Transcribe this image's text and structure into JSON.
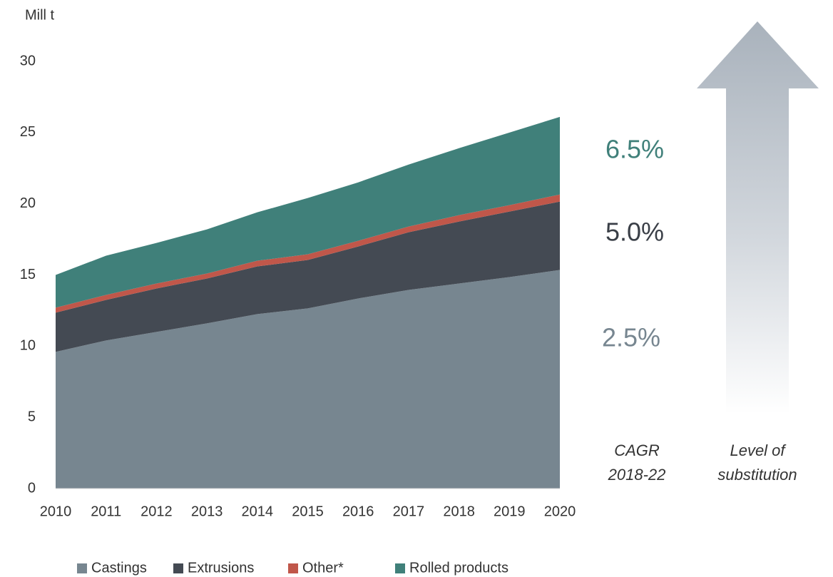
{
  "chart_data": {
    "type": "stacked_area",
    "y_axis_label": "Mill t",
    "categories": [
      "2010",
      "2011",
      "2012",
      "2013",
      "2014",
      "2015",
      "2016",
      "2017",
      "2018",
      "2019",
      "2020"
    ],
    "series": [
      {
        "name": "Castings",
        "color": "#778690",
        "values": [
          9.6,
          10.4,
          11.0,
          11.6,
          12.25,
          12.65,
          13.35,
          13.95,
          14.4,
          14.85,
          15.35
        ]
      },
      {
        "name": "Extrusions",
        "color": "#444a53",
        "values": [
          2.75,
          2.85,
          3.05,
          3.15,
          3.35,
          3.4,
          3.65,
          4.05,
          4.35,
          4.6,
          4.8
        ]
      },
      {
        "name": "Other*",
        "color": "#c0574a",
        "values": [
          0.35,
          0.35,
          0.35,
          0.35,
          0.4,
          0.4,
          0.4,
          0.4,
          0.45,
          0.45,
          0.5
        ]
      },
      {
        "name": "Rolled products",
        "color": "#40807a",
        "values": [
          2.3,
          2.75,
          2.85,
          3.1,
          3.4,
          3.95,
          4.1,
          4.35,
          4.7,
          5.1,
          5.45
        ]
      }
    ],
    "ylim": [
      0,
      30
    ],
    "yticks": [
      0,
      5,
      10,
      15,
      20,
      25,
      30
    ],
    "legend": "bottom",
    "annotations": [
      {
        "text": "6.5%",
        "color": "#40807a"
      },
      {
        "text": "5.0%",
        "color": "#3a3f47"
      },
      {
        "text": "2.5%",
        "color": "#778690"
      }
    ],
    "cagr_label": [
      "CAGR",
      "2018-22"
    ],
    "arrow_label": [
      "Level of",
      "substitution"
    ]
  }
}
